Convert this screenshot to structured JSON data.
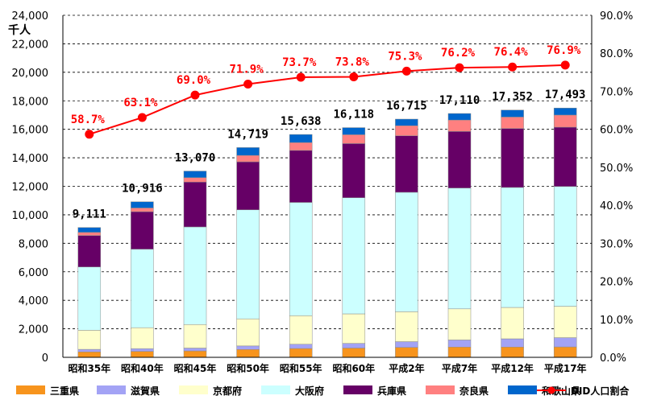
{
  "chart_data": {
    "type": "bar",
    "stacked": true,
    "y_unit_label": "千人",
    "ylim": [
      0,
      24000
    ],
    "y_ticks": [
      "0",
      "2,000",
      "4,000",
      "6,000",
      "8,000",
      "10,000",
      "12,000",
      "14,000",
      "16,000",
      "18,000",
      "20,000",
      "22,000",
      "24,000"
    ],
    "y2lim": [
      0,
      90
    ],
    "y2_ticks": [
      "0.0%",
      "10.0%",
      "20.0%",
      "30.0%",
      "40.0%",
      "50.0%",
      "60.0%",
      "70.0%",
      "80.0%",
      "90.0%"
    ],
    "grid": "horizontal dashed",
    "legend_position": "bottom",
    "categories": [
      "昭和35年",
      "昭和40年",
      "昭和45年",
      "昭和50年",
      "昭和55年",
      "昭和60年",
      "平成2年",
      "平成7年",
      "平成12年",
      "平成17年"
    ],
    "series": [
      {
        "name": "三重県",
        "color": "#f7941d",
        "values": [
          380,
          420,
          450,
          550,
          620,
          650,
          700,
          720,
          720,
          730
        ]
      },
      {
        "name": "滋賀県",
        "color": "#a3a3f5",
        "values": [
          180,
          190,
          200,
          250,
          300,
          330,
          400,
          500,
          580,
          650
        ]
      },
      {
        "name": "京都府",
        "color": "#ffffcc",
        "values": [
          1340,
          1470,
          1650,
          1900,
          2000,
          2070,
          2100,
          2180,
          2200,
          2200
        ]
      },
      {
        "name": "大阪府",
        "color": "#ccffff",
        "values": [
          4440,
          5510,
          6850,
          7650,
          7950,
          8150,
          8380,
          8480,
          8420,
          8410
        ]
      },
      {
        "name": "兵庫県",
        "color": "#660066",
        "values": [
          2210,
          2630,
          3150,
          3370,
          3650,
          3800,
          3970,
          3970,
          4140,
          4160
        ]
      },
      {
        "name": "奈良県",
        "color": "#ff8080",
        "values": [
          220,
          260,
          310,
          450,
          550,
          620,
          700,
          800,
          800,
          850
        ]
      },
      {
        "name": "和歌山県",
        "color": "#0066cc",
        "values": [
          341,
          436,
          460,
          549,
          568,
          498,
          465,
          460,
          492,
          493
        ]
      }
    ],
    "totals": [
      "9,111",
      "10,916",
      "13,070",
      "14,719",
      "15,638",
      "16,118",
      "16,715",
      "17,110",
      "17,352",
      "17,493"
    ],
    "line": {
      "name": "DID人口割合",
      "color": "#ff0000",
      "axis": "secondary",
      "values": [
        58.7,
        63.1,
        69.0,
        71.9,
        73.7,
        73.8,
        75.3,
        76.2,
        76.4,
        76.9
      ],
      "labels": [
        "58.7%",
        "63.1%",
        "69.0%",
        "71.9%",
        "73.7%",
        "73.8%",
        "75.3%",
        "76.2%",
        "76.4%",
        "76.9%"
      ]
    }
  }
}
